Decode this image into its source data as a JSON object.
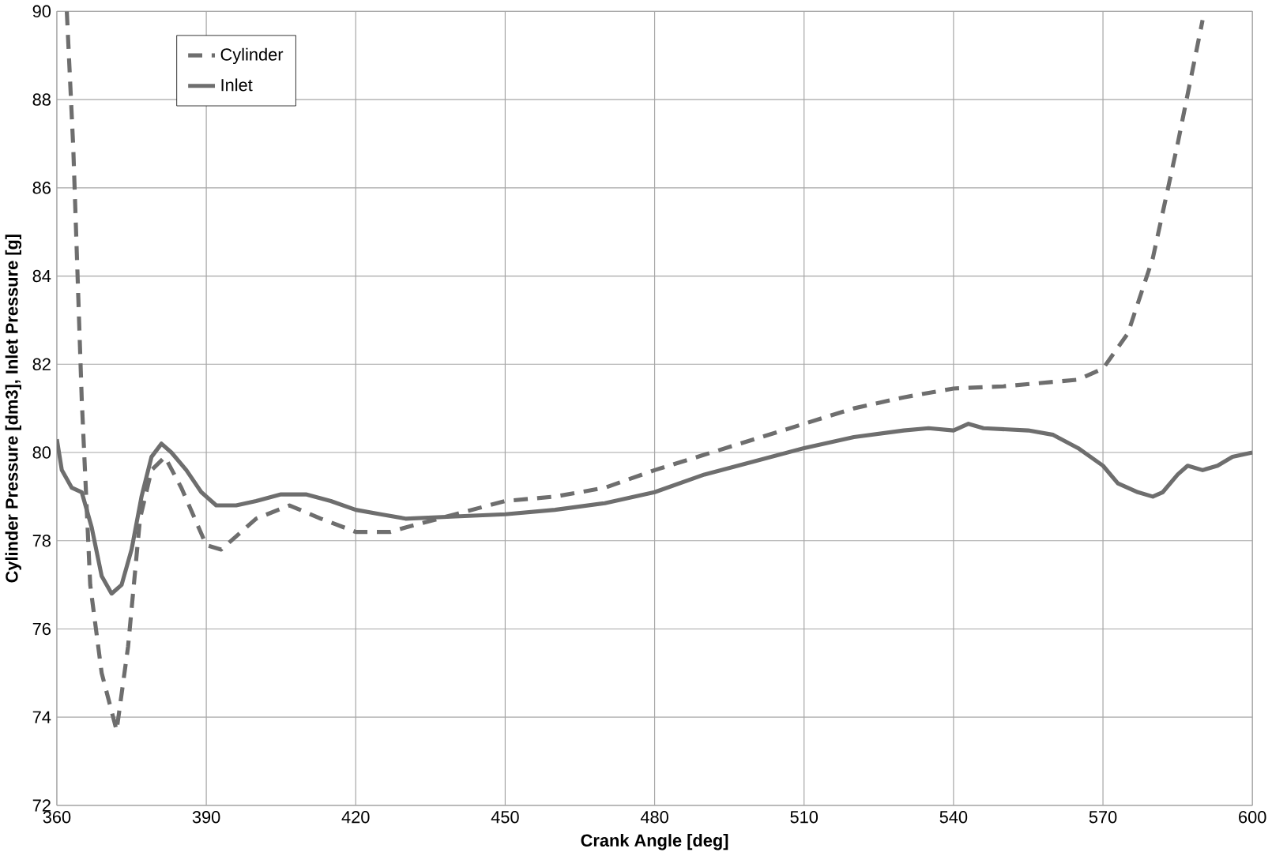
{
  "chart_data": {
    "type": "line",
    "xlabel": "Crank Angle [deg]",
    "ylabel": "Cylinder Pressure [dm3], Inlet Pressure [g]",
    "xlim": [
      360,
      600
    ],
    "ylim": [
      72,
      90
    ],
    "xticks": [
      360,
      390,
      420,
      450,
      480,
      510,
      540,
      570,
      600
    ],
    "yticks": [
      72,
      74,
      76,
      78,
      80,
      82,
      84,
      86,
      88,
      90
    ],
    "grid": true,
    "legend": "top left",
    "marker": "none",
    "series": [
      {
        "name": "Cylinder",
        "color": "#6e6e6e",
        "line_style": "dashed",
        "x": [
          362,
          363.3,
          365,
          366.7,
          369,
          372,
          374.3,
          376.7,
          379,
          381.7,
          385,
          390,
          393,
          400,
          406.7,
          413,
          420,
          427,
          430,
          440,
          450,
          460,
          470,
          480,
          490,
          500,
          510,
          520,
          530,
          540,
          550,
          560,
          565,
          570,
          575,
          580,
          585,
          590
        ],
        "values": [
          90,
          86.9,
          81.2,
          77,
          75,
          73.7,
          75.6,
          78.5,
          79.6,
          79.9,
          79.2,
          77.9,
          77.8,
          78.5,
          78.8,
          78.5,
          78.2,
          78.2,
          78.3,
          78.6,
          78.9,
          79,
          79.2,
          79.6,
          79.95,
          80.3,
          80.65,
          81,
          81.25,
          81.45,
          81.5,
          81.6,
          81.65,
          81.9,
          82.7,
          84.4,
          87,
          89.8
        ]
      },
      {
        "name": "Inlet",
        "color": "#6e6e6e",
        "line_style": "solid",
        "x": [
          360,
          361,
          363,
          365,
          367,
          369,
          371,
          373,
          375,
          377,
          379,
          381,
          383,
          386,
          389,
          392,
          396,
          400,
          405,
          410,
          415,
          420,
          425,
          430,
          440,
          450,
          460,
          470,
          480,
          490,
          500,
          510,
          520,
          530,
          535,
          540,
          543,
          546,
          555,
          560,
          565,
          570,
          573,
          577,
          580,
          582,
          585,
          587,
          590,
          593,
          596,
          600
        ],
        "values": [
          80.3,
          79.6,
          79.2,
          79.1,
          78.3,
          77.2,
          76.8,
          77,
          77.8,
          79,
          79.9,
          80.2,
          80,
          79.6,
          79.1,
          78.8,
          78.8,
          78.9,
          79.05,
          79.05,
          78.9,
          78.7,
          78.6,
          78.5,
          78.55,
          78.6,
          78.7,
          78.85,
          79.1,
          79.5,
          79.8,
          80.1,
          80.35,
          80.5,
          80.55,
          80.5,
          80.65,
          80.55,
          80.5,
          80.4,
          80.1,
          79.7,
          79.3,
          79.1,
          79,
          79.1,
          79.5,
          79.7,
          79.6,
          79.7,
          79.9,
          80
        ]
      }
    ]
  }
}
